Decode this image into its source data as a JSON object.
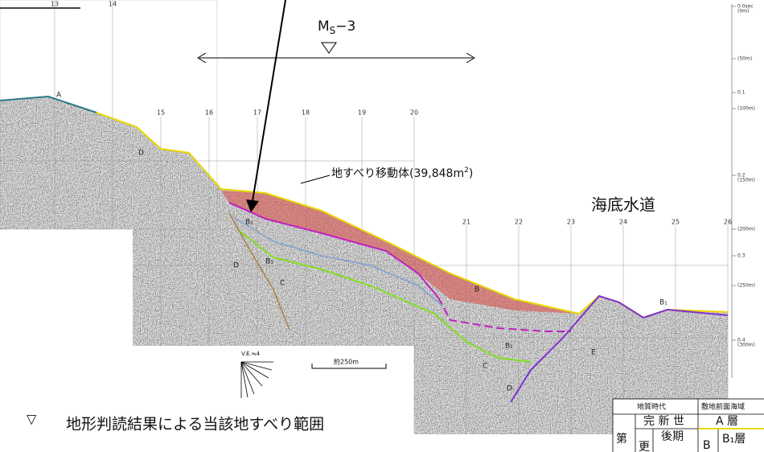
{
  "ms_marker": {
    "main": "M",
    "sub": "S",
    "rest": "−3"
  },
  "km_markers_top": [
    "13",
    "14"
  ],
  "km_markers_mid": [
    "15",
    "16",
    "17",
    "18",
    "19",
    "20"
  ],
  "km_markers_right": [
    "21",
    "22",
    "23",
    "24",
    "25",
    "26"
  ],
  "landslide_label": {
    "text": "地すべり移動体(39,848m",
    "sup": "2",
    "close": ")"
  },
  "channel_label": "海底水道",
  "depth_scale": [
    {
      "sec": "0.0sec",
      "m": "(0m)"
    },
    {
      "m": "(50m)"
    },
    {
      "sec": "0.1"
    },
    {
      "m": "(100m)"
    },
    {
      "sec": "0.2",
      "m": "(150m)"
    },
    {
      "m": "(200m)"
    },
    {
      "sec": "0.3"
    },
    {
      "m": "(250m)"
    },
    {
      "sec": "0.4",
      "m": "(300m)"
    }
  ],
  "layer_labels": [
    "A",
    "D",
    "B₁",
    "B₃",
    "D",
    "C",
    "B",
    "B₁",
    "C",
    "D",
    "E",
    "B₁"
  ],
  "ve_label": "V.E.≒4",
  "scale_bar": "約250m",
  "legend": {
    "symbol": "▽",
    "text": "地形判読結果による当該地すべり範囲"
  },
  "table": {
    "header": [
      "地質時代",
      "敷地前面海域"
    ],
    "row1": [
      "完 新 世",
      "A 層"
    ],
    "row2": [
      "第",
      "更",
      "後期",
      "B",
      "B₁層"
    ]
  }
}
